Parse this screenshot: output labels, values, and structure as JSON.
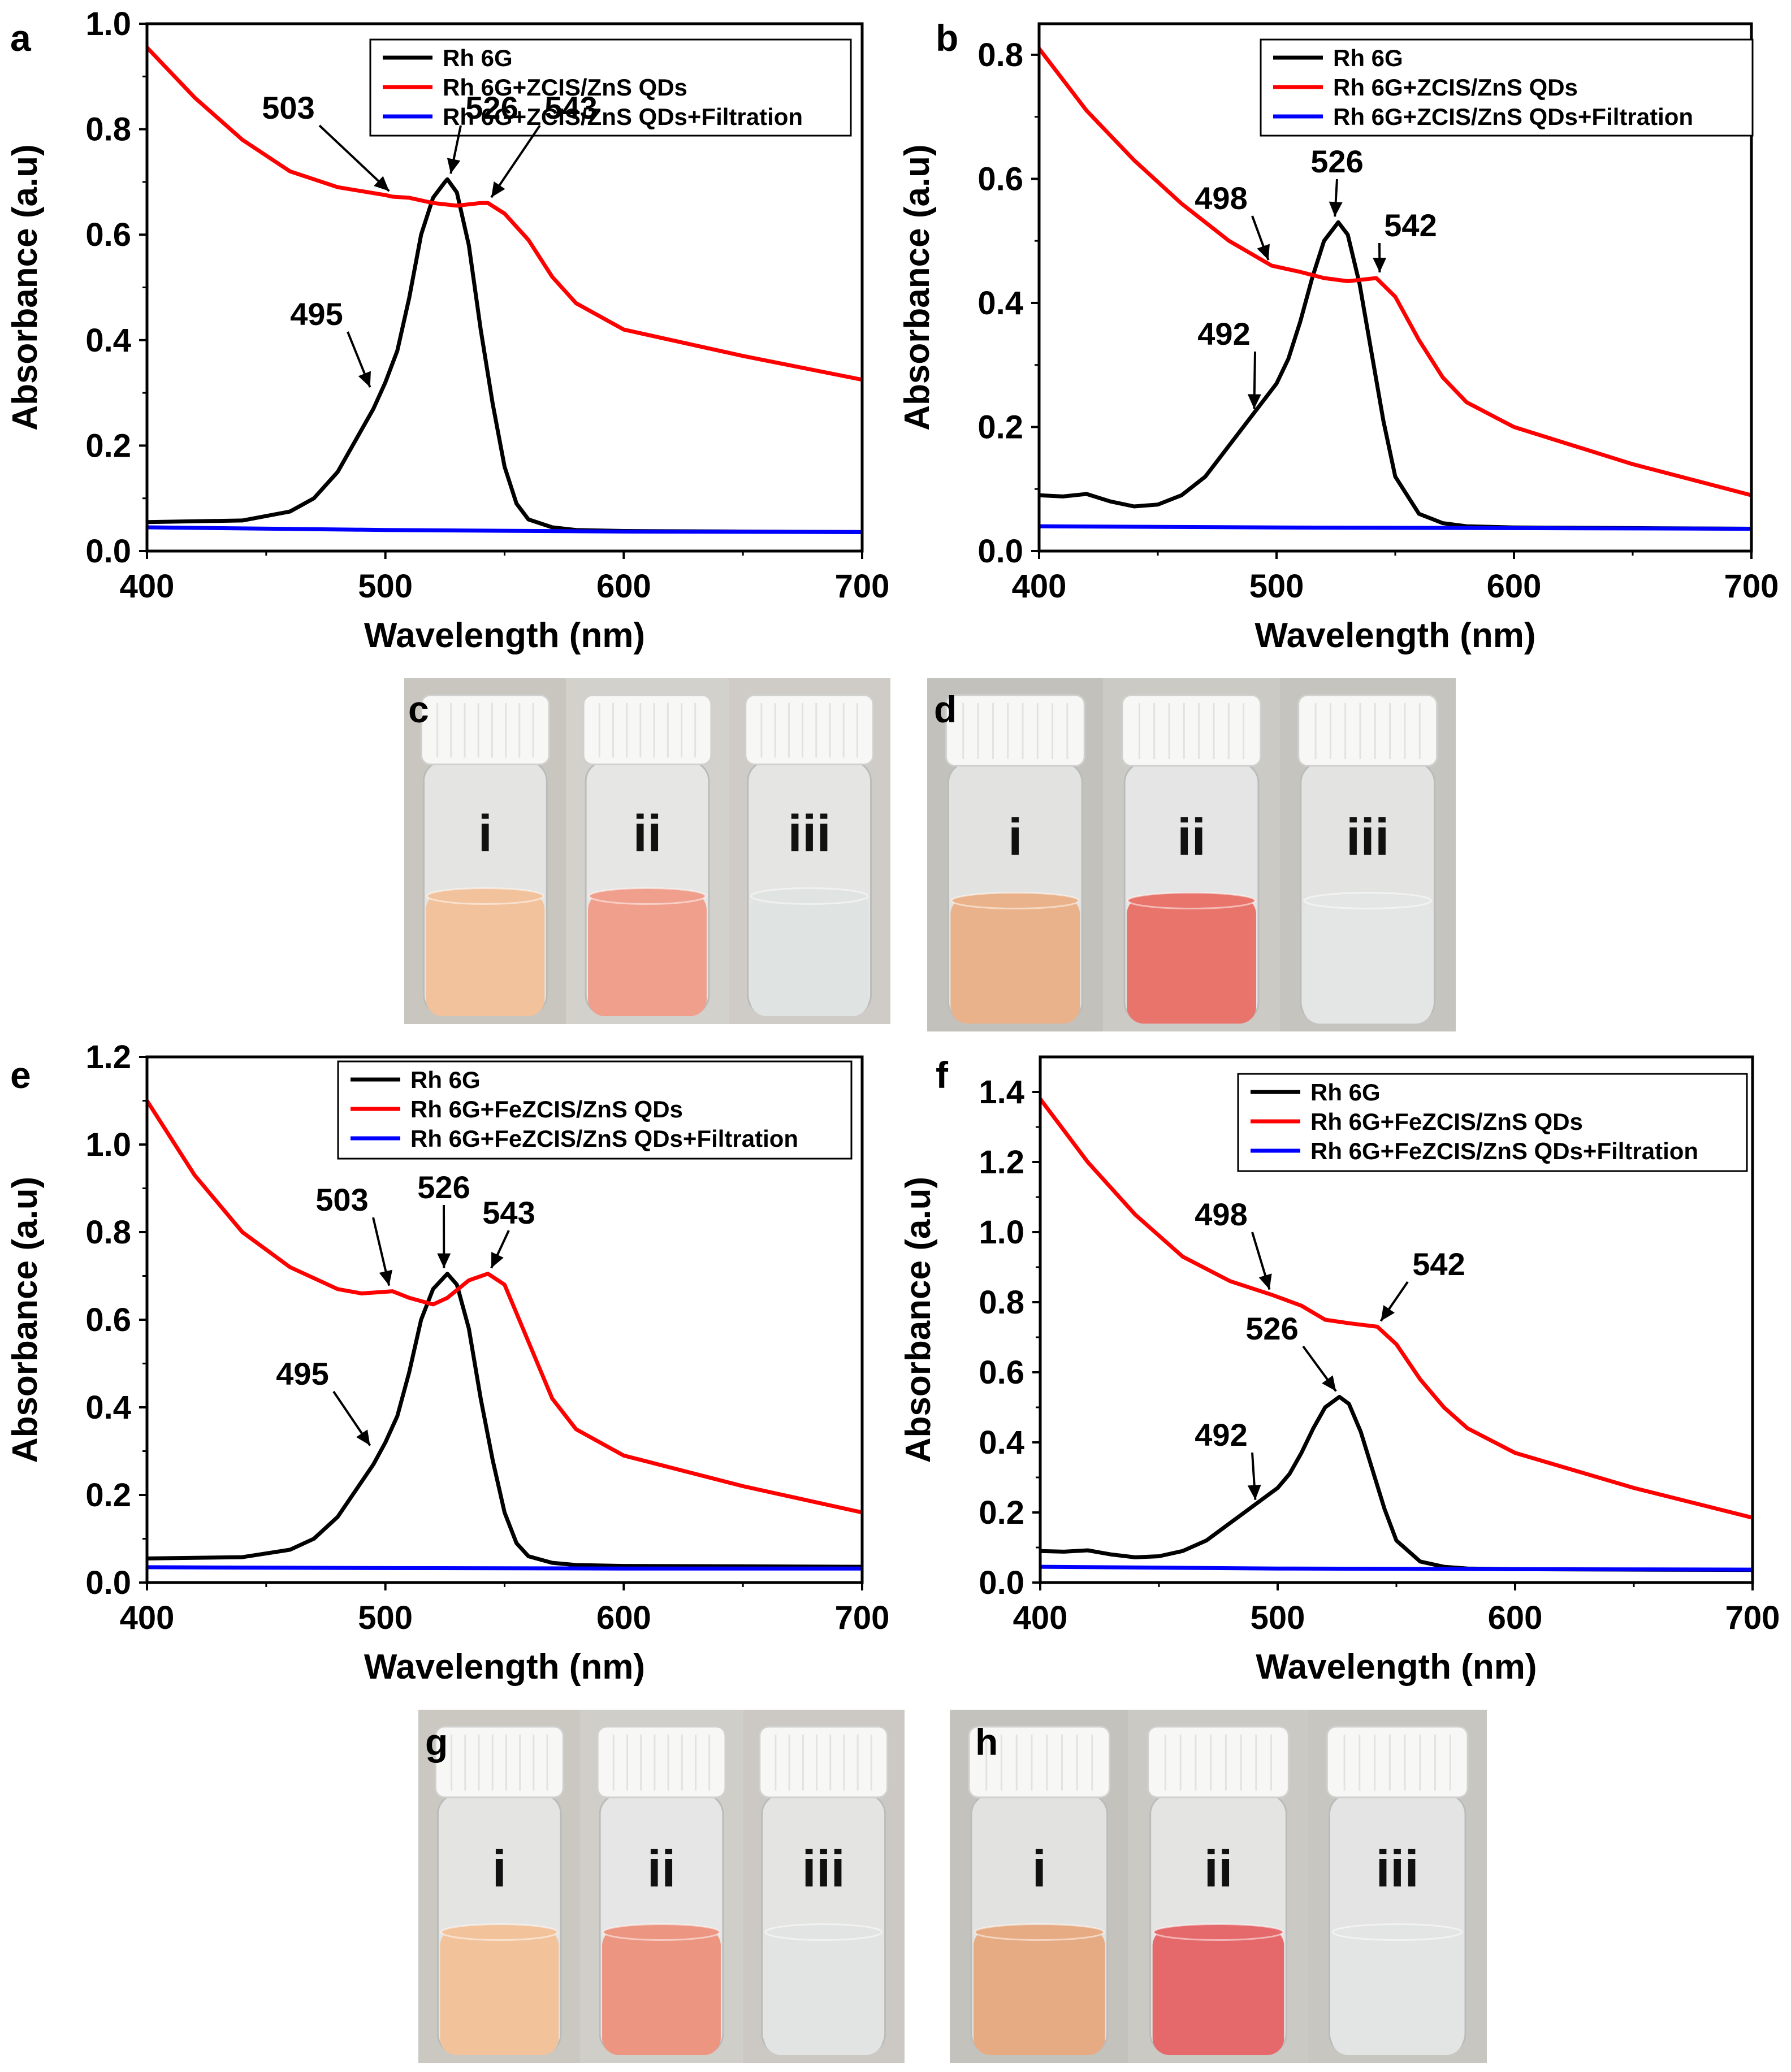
{
  "chart_data": [
    {
      "panel": "a",
      "type": "line",
      "xlabel": "Wavelength (nm)",
      "ylabel": "Absorbance (a.u)",
      "xlim": [
        400,
        700
      ],
      "ylim": [
        0,
        1.0
      ],
      "xticks": [
        400,
        500,
        600,
        700
      ],
      "yticks": [
        0.0,
        0.2,
        0.4,
        0.6,
        0.8,
        1.0
      ],
      "ytick_labels": [
        "0.0",
        "0.2",
        "0.4",
        "0.6",
        "0.8",
        "1.0"
      ],
      "legend_position": "top-right",
      "series": [
        {
          "name": "Rh 6G",
          "color": "#000000",
          "x": [
            400,
            440,
            460,
            470,
            480,
            490,
            495,
            500,
            505,
            510,
            515,
            520,
            525,
            526,
            530,
            535,
            540,
            545,
            550,
            555,
            560,
            570,
            580,
            600,
            650,
            700
          ],
          "y": [
            0.055,
            0.058,
            0.075,
            0.1,
            0.15,
            0.23,
            0.27,
            0.32,
            0.38,
            0.48,
            0.6,
            0.67,
            0.7,
            0.705,
            0.68,
            0.58,
            0.42,
            0.28,
            0.16,
            0.09,
            0.06,
            0.045,
            0.04,
            0.038,
            0.037,
            0.036
          ]
        },
        {
          "name": "Rh 6G+ZCIS/ZnS QDs",
          "color": "#ff0000",
          "x": [
            400,
            420,
            440,
            460,
            480,
            500,
            503,
            510,
            520,
            530,
            540,
            543,
            550,
            560,
            570,
            580,
            600,
            650,
            700
          ],
          "y": [
            0.955,
            0.86,
            0.78,
            0.72,
            0.69,
            0.675,
            0.672,
            0.67,
            0.66,
            0.655,
            0.66,
            0.66,
            0.64,
            0.59,
            0.52,
            0.47,
            0.42,
            0.37,
            0.325
          ]
        },
        {
          "name": "Rh 6G+ZCIS/ZnS QDs+Filtration",
          "color": "#0000ff",
          "x": [
            400,
            500,
            600,
            700
          ],
          "y": [
            0.045,
            0.04,
            0.037,
            0.036
          ]
        }
      ],
      "annotations": [
        {
          "label": "503",
          "x": 503,
          "y": 0.672
        },
        {
          "label": "526",
          "x": 526,
          "y": 0.705
        },
        {
          "label": "543",
          "x": 543,
          "y": 0.66
        },
        {
          "label": "495",
          "x": 495,
          "y": 0.3
        }
      ]
    },
    {
      "panel": "b",
      "type": "line",
      "xlabel": "Wavelength (nm)",
      "ylabel": "Absorbance (a.u)",
      "xlim": [
        400,
        700
      ],
      "ylim": [
        0,
        0.85
      ],
      "xticks": [
        400,
        500,
        600,
        700
      ],
      "yticks": [
        0.0,
        0.2,
        0.4,
        0.6,
        0.8
      ],
      "ytick_labels": [
        "0.0",
        "0.2",
        "0.4",
        "0.6",
        "0.8"
      ],
      "legend_position": "top-right",
      "series": [
        {
          "name": "Rh 6G",
          "color": "#000000",
          "x": [
            400,
            410,
            420,
            430,
            440,
            450,
            460,
            470,
            480,
            490,
            500,
            505,
            510,
            515,
            520,
            526,
            530,
            535,
            540,
            545,
            550,
            560,
            570,
            580,
            600,
            650,
            700
          ],
          "y": [
            0.09,
            0.088,
            0.092,
            0.08,
            0.072,
            0.075,
            0.09,
            0.12,
            0.17,
            0.22,
            0.27,
            0.31,
            0.37,
            0.44,
            0.5,
            0.53,
            0.51,
            0.43,
            0.32,
            0.21,
            0.12,
            0.06,
            0.045,
            0.04,
            0.038,
            0.037,
            0.036
          ]
        },
        {
          "name": "Rh 6G+ZCIS/ZnS QDs",
          "color": "#ff0000",
          "x": [
            400,
            420,
            440,
            460,
            480,
            498,
            510,
            520,
            530,
            542,
            550,
            560,
            570,
            580,
            600,
            650,
            700
          ],
          "y": [
            0.81,
            0.71,
            0.63,
            0.56,
            0.5,
            0.46,
            0.45,
            0.44,
            0.435,
            0.44,
            0.41,
            0.34,
            0.28,
            0.24,
            0.2,
            0.14,
            0.09
          ]
        },
        {
          "name": "Rh 6G+ZCIS/ZnS QDs+Filtration",
          "color": "#0000ff",
          "x": [
            400,
            500,
            600,
            700
          ],
          "y": [
            0.04,
            0.038,
            0.037,
            0.036
          ]
        }
      ],
      "annotations": [
        {
          "label": "498",
          "x": 498,
          "y": 0.46
        },
        {
          "label": "526",
          "x": 526,
          "y": 0.53
        },
        {
          "label": "542",
          "x": 542,
          "y": 0.44
        },
        {
          "label": "492",
          "x": 492,
          "y": 0.22
        }
      ]
    },
    {
      "panel": "e",
      "type": "line",
      "xlabel": "Wavelength (nm)",
      "ylabel": "Absorbance (a.u)",
      "xlim": [
        400,
        700
      ],
      "ylim": [
        0,
        1.2
      ],
      "xticks": [
        400,
        500,
        600,
        700
      ],
      "yticks": [
        0.0,
        0.2,
        0.4,
        0.6,
        0.8,
        1.0,
        1.2
      ],
      "ytick_labels": [
        "0.0",
        "0.2",
        "0.4",
        "0.6",
        "0.8",
        "1.0",
        "1.2"
      ],
      "legend_position": "top-right",
      "series": [
        {
          "name": "Rh 6G",
          "color": "#000000",
          "x": [
            400,
            440,
            460,
            470,
            480,
            490,
            495,
            500,
            505,
            510,
            515,
            520,
            526,
            530,
            535,
            540,
            545,
            550,
            555,
            560,
            570,
            580,
            600,
            650,
            700
          ],
          "y": [
            0.055,
            0.058,
            0.075,
            0.1,
            0.15,
            0.23,
            0.27,
            0.32,
            0.38,
            0.48,
            0.6,
            0.67,
            0.705,
            0.68,
            0.58,
            0.42,
            0.28,
            0.16,
            0.09,
            0.06,
            0.045,
            0.04,
            0.038,
            0.037,
            0.036
          ]
        },
        {
          "name": "Rh 6G+FeZCIS/ZnS QDs",
          "color": "#ff0000",
          "x": [
            400,
            420,
            440,
            460,
            480,
            490,
            503,
            510,
            520,
            526,
            535,
            543,
            550,
            560,
            570,
            580,
            600,
            650,
            700
          ],
          "y": [
            1.1,
            0.93,
            0.8,
            0.72,
            0.67,
            0.66,
            0.665,
            0.65,
            0.635,
            0.65,
            0.69,
            0.705,
            0.68,
            0.55,
            0.42,
            0.35,
            0.29,
            0.22,
            0.16
          ]
        },
        {
          "name": "Rh 6G+FeZCIS/ZnS QDs+Filtration",
          "color": "#0000ff",
          "x": [
            400,
            500,
            600,
            700
          ],
          "y": [
            0.035,
            0.033,
            0.032,
            0.032
          ]
        }
      ],
      "annotations": [
        {
          "label": "503",
          "x": 503,
          "y": 0.665
        },
        {
          "label": "526",
          "x": 526,
          "y": 0.705
        },
        {
          "label": "543",
          "x": 543,
          "y": 0.705
        },
        {
          "label": "495",
          "x": 495,
          "y": 0.3
        }
      ]
    },
    {
      "panel": "f",
      "type": "line",
      "xlabel": "Wavelength (nm)",
      "ylabel": "Absorbance (a.u)",
      "xlim": [
        400,
        700
      ],
      "ylim": [
        0,
        1.5
      ],
      "xticks": [
        400,
        500,
        600,
        700
      ],
      "yticks": [
        0.0,
        0.2,
        0.4,
        0.6,
        0.8,
        1.0,
        1.2,
        1.4
      ],
      "ytick_labels": [
        "0.0",
        "0.2",
        "0.4",
        "0.6",
        "0.8",
        "1.0",
        "1.2",
        "1.4"
      ],
      "legend_position": "top-right",
      "series": [
        {
          "name": "Rh 6G",
          "color": "#000000",
          "x": [
            400,
            410,
            420,
            430,
            440,
            450,
            460,
            470,
            480,
            490,
            500,
            505,
            510,
            515,
            520,
            526,
            530,
            535,
            540,
            545,
            550,
            560,
            570,
            580,
            600,
            650,
            700
          ],
          "y": [
            0.09,
            0.088,
            0.092,
            0.08,
            0.072,
            0.075,
            0.09,
            0.12,
            0.17,
            0.22,
            0.27,
            0.31,
            0.37,
            0.44,
            0.5,
            0.53,
            0.51,
            0.43,
            0.32,
            0.21,
            0.12,
            0.06,
            0.045,
            0.04,
            0.038,
            0.037,
            0.036
          ]
        },
        {
          "name": "Rh 6G+FeZCIS/ZnS QDs",
          "color": "#ff0000",
          "x": [
            400,
            420,
            440,
            460,
            480,
            498,
            510,
            520,
            530,
            542,
            550,
            560,
            570,
            580,
            600,
            650,
            700
          ],
          "y": [
            1.38,
            1.2,
            1.05,
            0.93,
            0.86,
            0.82,
            0.79,
            0.75,
            0.74,
            0.73,
            0.68,
            0.58,
            0.5,
            0.44,
            0.37,
            0.27,
            0.185
          ]
        },
        {
          "name": "Rh 6G+FeZCIS/ZnS QDs+Filtration",
          "color": "#0000ff",
          "x": [
            400,
            500,
            600,
            700
          ],
          "y": [
            0.045,
            0.04,
            0.038,
            0.037
          ]
        }
      ],
      "annotations": [
        {
          "label": "498",
          "x": 498,
          "y": 0.82
        },
        {
          "label": "542",
          "x": 542,
          "y": 0.73
        },
        {
          "label": "526",
          "x": 526,
          "y": 0.53
        },
        {
          "label": "492",
          "x": 492,
          "y": 0.22
        }
      ]
    }
  ],
  "photo_panels": [
    {
      "panel": "c",
      "vials": [
        {
          "label": "i",
          "color": "#f2c29c"
        },
        {
          "label": "ii",
          "color": "#ef9f8c"
        },
        {
          "label": "iii",
          "color": "#dfe3e2"
        }
      ]
    },
    {
      "panel": "d",
      "vials": [
        {
          "label": "i",
          "color": "#eab28a"
        },
        {
          "label": "ii",
          "color": "#e8746b"
        },
        {
          "label": "iii",
          "color": "#e3e6e5"
        }
      ]
    },
    {
      "panel": "g",
      "vials": [
        {
          "label": "i",
          "color": "#f2c39b"
        },
        {
          "label": "ii",
          "color": "#ec9580"
        },
        {
          "label": "iii",
          "color": "#e1e4e3"
        }
      ]
    },
    {
      "panel": "h",
      "vials": [
        {
          "label": "i",
          "color": "#e6ab83"
        },
        {
          "label": "ii",
          "color": "#e5686a"
        },
        {
          "label": "iii",
          "color": "#e2e5e4"
        }
      ]
    }
  ]
}
